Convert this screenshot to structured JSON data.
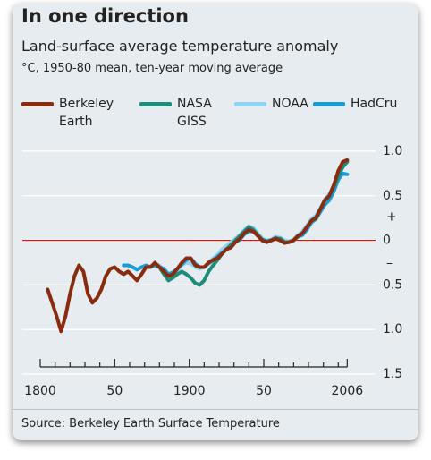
{
  "chart_data": {
    "type": "line",
    "title": "In one direction",
    "subtitle": "Land-surface average temperature anomaly",
    "units": "°C, 1950-80 mean, ten-year moving average",
    "source": "Source: Berkeley Earth Surface Temperature",
    "y_sign_labels": {
      "plus": "+",
      "minus": "–"
    },
    "x": [
      1805,
      1808,
      1811,
      1814,
      1817,
      1820,
      1823,
      1826,
      1829,
      1832,
      1835,
      1838,
      1841,
      1844,
      1847,
      1850,
      1853,
      1856,
      1859,
      1862,
      1865,
      1868,
      1871,
      1874,
      1877,
      1880,
      1883,
      1886,
      1889,
      1892,
      1895,
      1898,
      1901,
      1904,
      1907,
      1910,
      1913,
      1916,
      1919,
      1922,
      1925,
      1928,
      1931,
      1934,
      1937,
      1940,
      1943,
      1946,
      1949,
      1952,
      1955,
      1958,
      1961,
      1964,
      1967,
      1970,
      1973,
      1976,
      1979,
      1982,
      1985,
      1988,
      1991,
      1994,
      1997,
      2000,
      2003,
      2006
    ],
    "series": [
      {
        "name": "NOAA",
        "color": "#8fd4f2",
        "values": [
          null,
          null,
          null,
          null,
          null,
          null,
          null,
          null,
          null,
          null,
          null,
          null,
          null,
          null,
          null,
          null,
          null,
          null,
          null,
          null,
          null,
          null,
          null,
          null,
          null,
          -0.28,
          -0.33,
          -0.38,
          -0.38,
          -0.33,
          -0.28,
          -0.25,
          -0.26,
          -0.3,
          -0.32,
          -0.3,
          -0.25,
          -0.2,
          -0.16,
          -0.1,
          -0.06,
          -0.02,
          0.02,
          0.06,
          0.12,
          0.16,
          0.14,
          0.08,
          0.02,
          0.0,
          0.01,
          0.04,
          0.03,
          0.0,
          -0.01,
          0.01,
          0.06,
          0.1,
          0.17,
          0.24,
          0.28,
          0.36,
          0.46,
          0.52,
          0.62,
          0.74,
          0.84,
          0.9
        ]
      },
      {
        "name": "HadCru",
        "color": "#1b9bd7",
        "values": [
          null,
          null,
          null,
          null,
          null,
          null,
          null,
          null,
          null,
          null,
          null,
          null,
          null,
          null,
          null,
          null,
          null,
          -0.28,
          -0.28,
          -0.3,
          -0.33,
          -0.3,
          -0.28,
          -0.3,
          -0.28,
          -0.3,
          -0.32,
          -0.38,
          -0.36,
          -0.32,
          -0.27,
          -0.22,
          -0.2,
          -0.26,
          -0.3,
          -0.3,
          -0.26,
          -0.22,
          -0.18,
          -0.14,
          -0.1,
          -0.07,
          -0.02,
          0.01,
          0.07,
          0.1,
          0.1,
          0.06,
          0.01,
          -0.01,
          0.0,
          0.03,
          0.01,
          -0.02,
          -0.02,
          0.0,
          0.04,
          0.06,
          0.12,
          0.2,
          0.24,
          0.32,
          0.4,
          0.45,
          0.55,
          0.68,
          0.75,
          0.74
        ]
      },
      {
        "name": "NASA GISS",
        "color": "#1e8c7b",
        "values": [
          null,
          null,
          null,
          null,
          null,
          null,
          null,
          null,
          null,
          null,
          null,
          null,
          null,
          null,
          null,
          null,
          null,
          null,
          null,
          null,
          null,
          null,
          null,
          null,
          null,
          -0.3,
          -0.38,
          -0.45,
          -0.42,
          -0.38,
          -0.35,
          -0.38,
          -0.42,
          -0.48,
          -0.5,
          -0.45,
          -0.35,
          -0.28,
          -0.22,
          -0.15,
          -0.1,
          -0.05,
          0.0,
          0.05,
          0.1,
          0.15,
          0.12,
          0.06,
          0.0,
          -0.02,
          0.0,
          0.02,
          0.02,
          -0.02,
          -0.02,
          0.0,
          0.05,
          0.08,
          0.15,
          0.22,
          0.26,
          0.35,
          0.45,
          0.5,
          0.6,
          0.72,
          0.82,
          0.88
        ]
      },
      {
        "name": "Berkeley Earth",
        "color": "#8a2b0e",
        "values": [
          -0.55,
          -0.7,
          -0.85,
          -1.02,
          -0.85,
          -0.6,
          -0.4,
          -0.28,
          -0.35,
          -0.6,
          -0.7,
          -0.65,
          -0.55,
          -0.4,
          -0.32,
          -0.3,
          -0.35,
          -0.38,
          -0.35,
          -0.4,
          -0.45,
          -0.38,
          -0.3,
          -0.3,
          -0.25,
          -0.3,
          -0.35,
          -0.4,
          -0.38,
          -0.32,
          -0.25,
          -0.2,
          -0.2,
          -0.28,
          -0.3,
          -0.3,
          -0.25,
          -0.22,
          -0.2,
          -0.15,
          -0.1,
          -0.08,
          -0.02,
          0.02,
          0.08,
          0.12,
          0.1,
          0.05,
          0.0,
          -0.02,
          0.0,
          0.02,
          0.0,
          -0.03,
          -0.02,
          0.0,
          0.05,
          0.08,
          0.15,
          0.22,
          0.25,
          0.35,
          0.45,
          0.5,
          0.62,
          0.78,
          0.88,
          0.9
        ]
      }
    ],
    "legend_order": [
      3,
      2,
      0,
      1
    ],
    "xlim": [
      1788,
      2025
    ],
    "xticks": [
      1800,
      {
        "value": 1850,
        "label": "50"
      },
      1900,
      {
        "value": 1950,
        "label": "50"
      },
      2006
    ],
    "xminorticks": [
      1810,
      1820,
      1830,
      1840,
      1860,
      1870,
      1880,
      1890,
      1910,
      1920,
      1930,
      1940,
      1960,
      1970,
      1980,
      1990,
      2000
    ],
    "ylim": [
      -1.5,
      1.15
    ],
    "yticks": [
      {
        "value": 1,
        "label": "1.0"
      },
      0.5,
      0,
      {
        "value": -0.5,
        "label": "0.5"
      },
      {
        "value": -1,
        "label": "1.0"
      },
      {
        "value": -1.5,
        "label": "1.5"
      }
    ],
    "grid": true,
    "zero_line_color": "#e3120b"
  }
}
